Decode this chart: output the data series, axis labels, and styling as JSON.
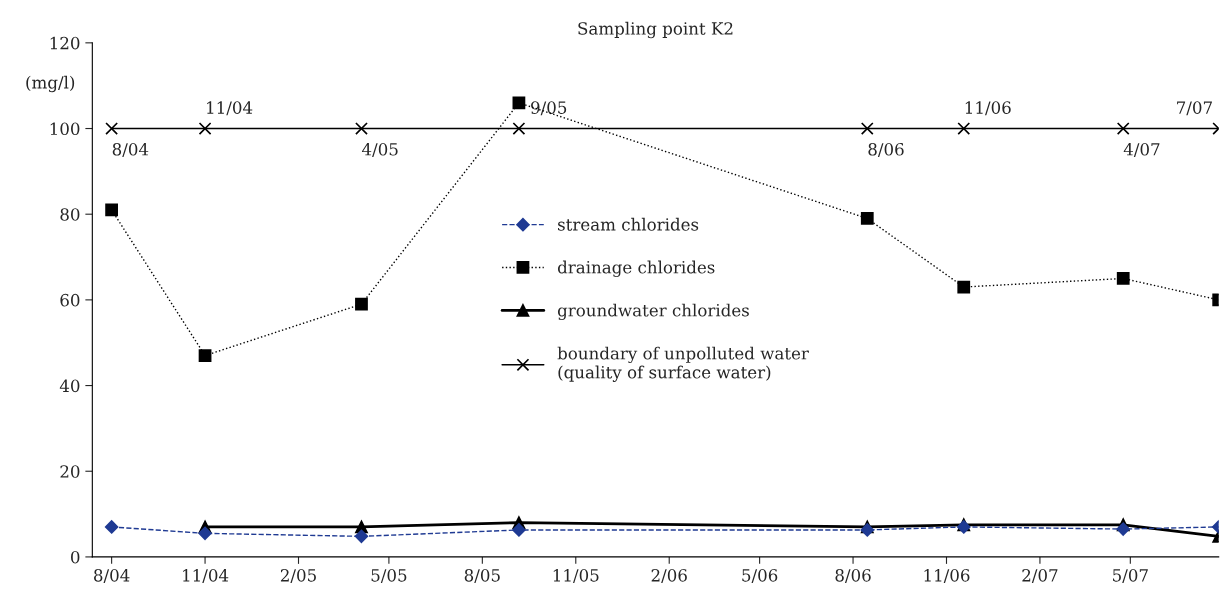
{
  "chart_data": {
    "type": "line",
    "title": "Sampling point K2",
    "ylabel": "(mg/l)",
    "x": [
      "2004-08-01",
      "2004-11-01",
      "2005-04-04",
      "2005-09-06",
      "2006-08-15",
      "2006-11-18",
      "2007-04-24",
      "2007-07-27"
    ],
    "series": [
      {
        "name": "stream chlorides",
        "color": "#1f3a93",
        "marker": "diamond",
        "line_style": "dashed",
        "values": [
          7,
          5.5,
          4.8,
          6.3,
          6.3,
          7,
          6.5,
          7
        ]
      },
      {
        "name": "drainage chlorides",
        "color": "#000000",
        "marker": "square",
        "line_style": "dotted",
        "values": [
          81,
          47,
          59,
          106,
          79,
          63,
          65,
          60
        ]
      },
      {
        "name": "groundwater chlorides",
        "color": "#000000",
        "marker": "triangle",
        "line_style": "solid",
        "values": [
          null,
          7,
          7,
          8,
          7,
          7.5,
          7.5,
          4.8
        ]
      },
      {
        "name": "boundary of unpolluted water\n(quality of surface water)",
        "color": "#000000",
        "marker": "cross",
        "line_style": "solid",
        "values": [
          100,
          100,
          100,
          100,
          100,
          100,
          100,
          100
        ]
      }
    ],
    "annotations": [
      {
        "text": "8/04",
        "x": "2004-08-01",
        "y": 100
      },
      {
        "text": "11/04",
        "x": "2004-11-01",
        "y": 100
      },
      {
        "text": "4/05",
        "x": "2005-04-04",
        "y": 100
      },
      {
        "text": "9/05",
        "x": "2005-09-06",
        "y": 100
      },
      {
        "text": "8/06",
        "x": "2006-08-15",
        "y": 100
      },
      {
        "text": "11/06",
        "x": "2006-11-18",
        "y": 100
      },
      {
        "text": "4/07",
        "x": "2007-04-24",
        "y": 100
      },
      {
        "text": "7/07",
        "x": "2007-07-27",
        "y": 100
      }
    ],
    "xlim": [
      "2004-07-13",
      "2007-07-27"
    ],
    "xticks": [
      {
        "value": "2004-08-01",
        "label": "8/04"
      },
      {
        "value": "2004-11-01",
        "label": "11/04"
      },
      {
        "value": "2005-02-01",
        "label": "2/05"
      },
      {
        "value": "2005-05-01",
        "label": "5/05"
      },
      {
        "value": "2005-08-01",
        "label": "8/05"
      },
      {
        "value": "2005-11-01",
        "label": "11/05"
      },
      {
        "value": "2006-02-01",
        "label": "2/06"
      },
      {
        "value": "2006-05-01",
        "label": "5/06"
      },
      {
        "value": "2006-08-01",
        "label": "8/06"
      },
      {
        "value": "2006-11-01",
        "label": "11/06"
      },
      {
        "value": "2007-02-01",
        "label": "2/07"
      },
      {
        "value": "2007-05-01",
        "label": "5/07"
      }
    ],
    "ylim": [
      0,
      120
    ],
    "yticks": [
      0,
      20,
      40,
      60,
      80,
      100,
      120
    ],
    "grid": false,
    "legend": "center"
  }
}
